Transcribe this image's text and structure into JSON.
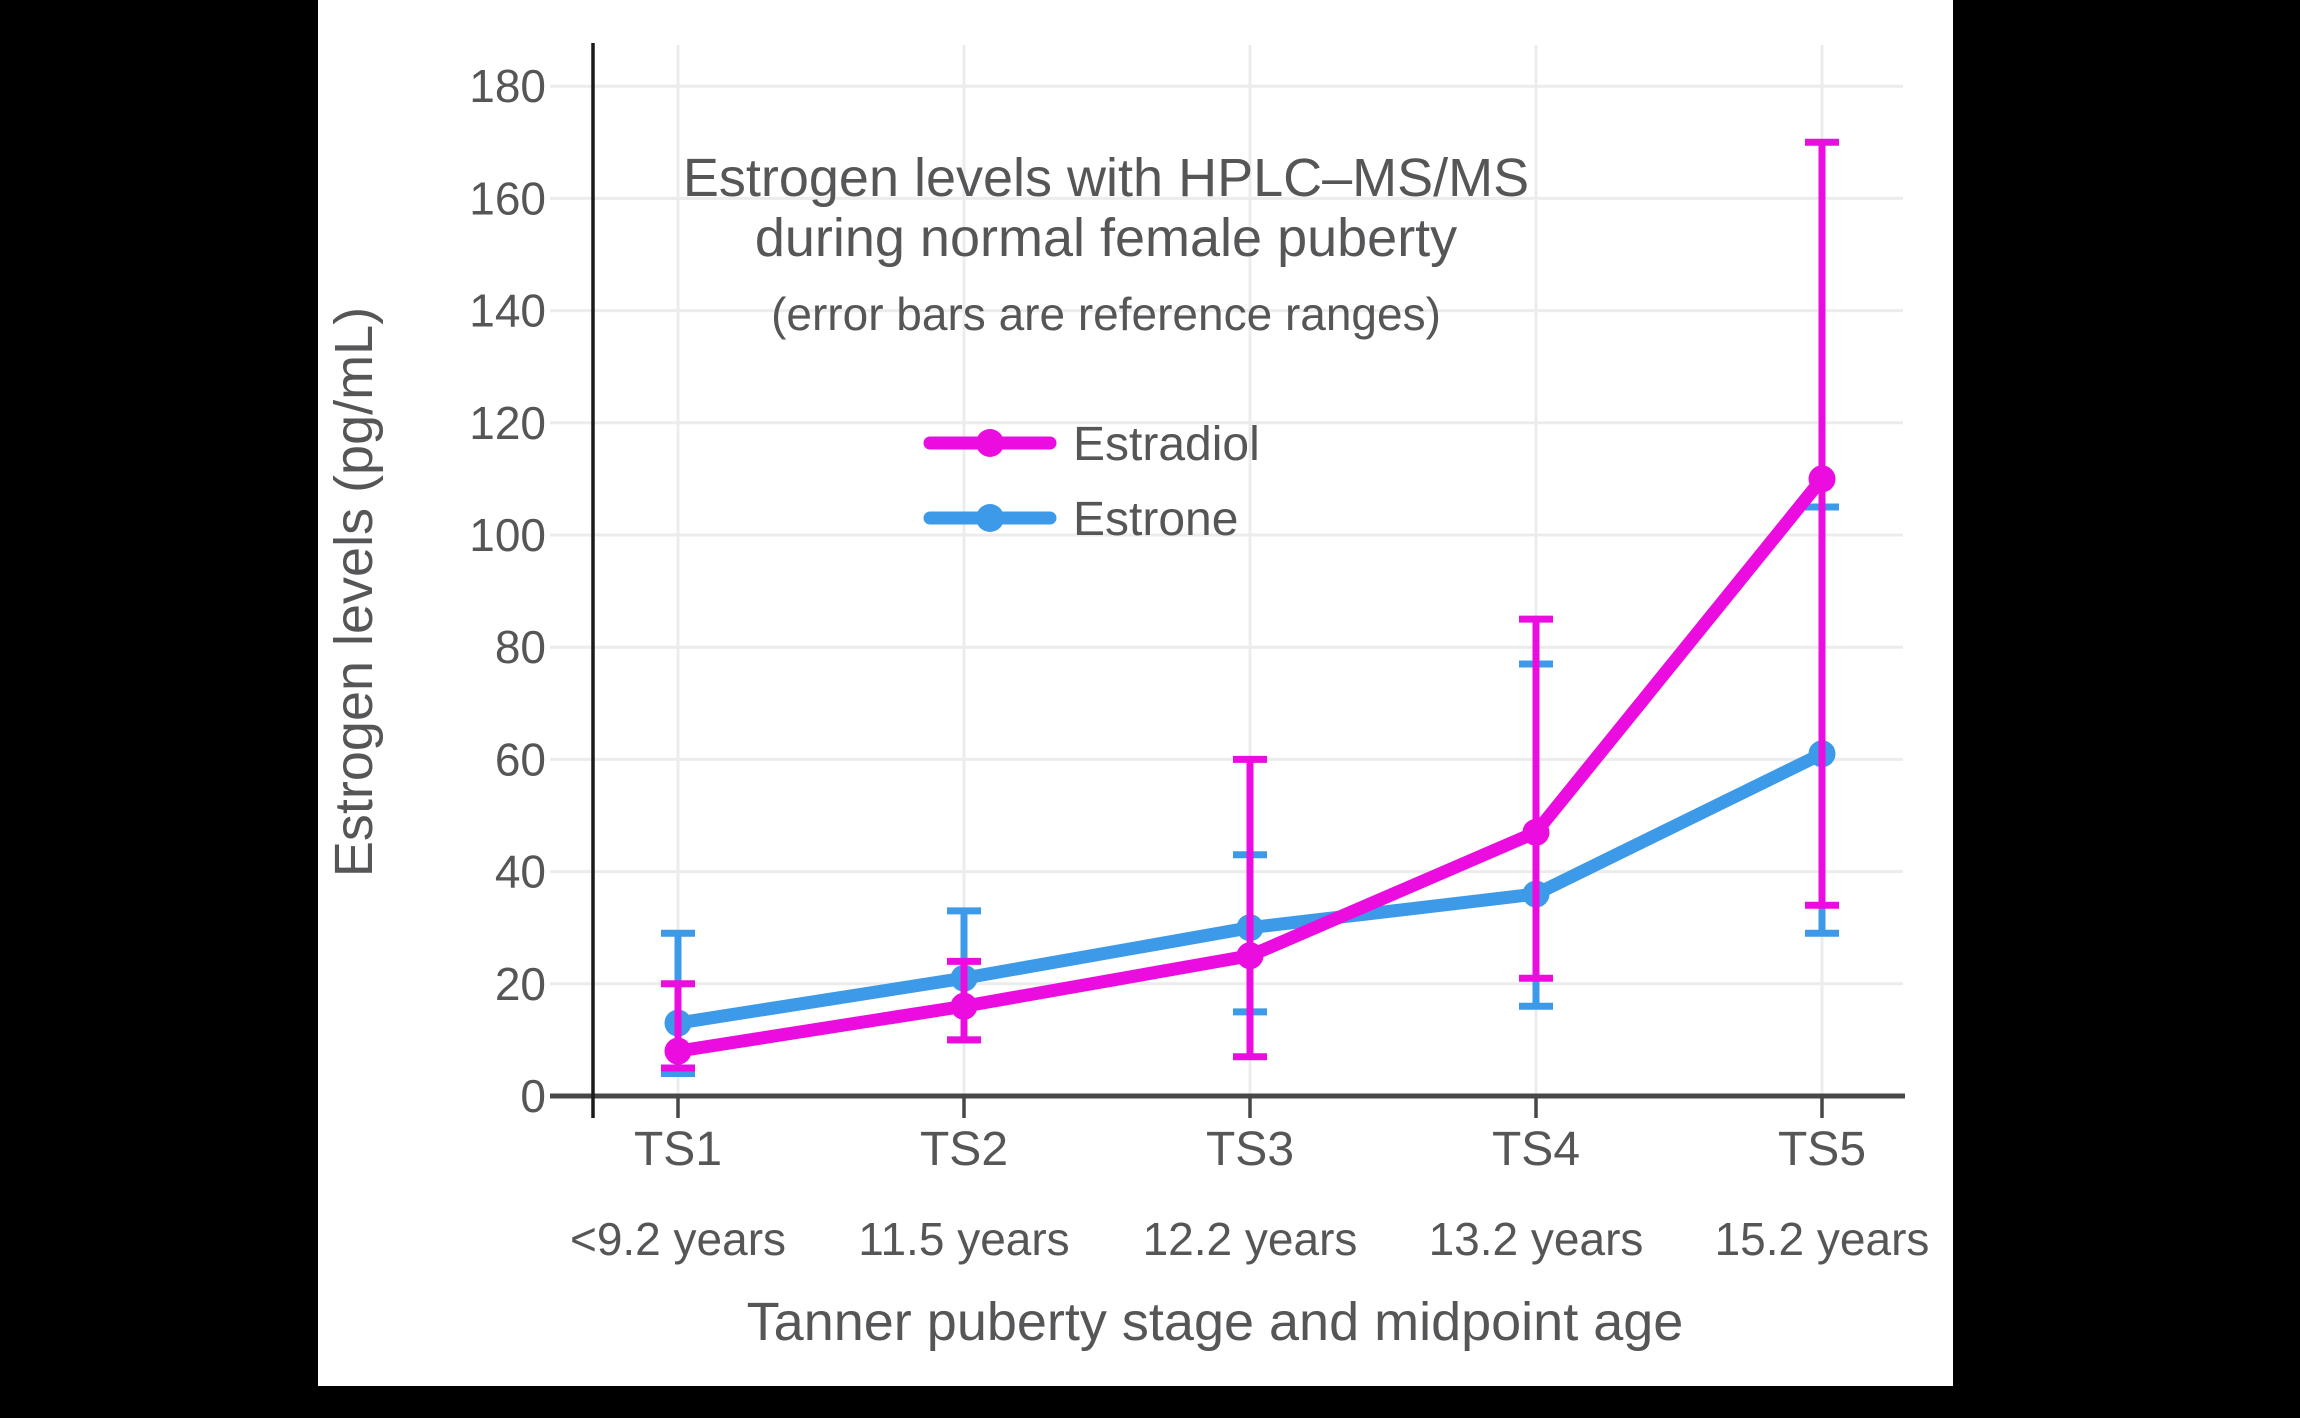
{
  "page": {
    "background": "#000000",
    "canvas_background": "#ffffff"
  },
  "chart_data": {
    "type": "line",
    "title_lines": [
      "Estrogen levels with HPLC–MS/MS",
      "during normal female puberty"
    ],
    "subtitle": "(error bars are reference ranges)",
    "xlabel": "Tanner puberty stage and midpoint age",
    "ylabel": "Estrogen levels (pg/mL)",
    "categories": [
      "TS1",
      "TS2",
      "TS3",
      "TS4",
      "TS5"
    ],
    "category_sublabels": [
      "<9.2 years",
      "11.5 years",
      "12.2 years",
      "13.2 years",
      "15.2 years"
    ],
    "y_ticks": [
      0,
      20,
      40,
      60,
      80,
      100,
      120,
      140,
      160,
      180
    ],
    "ylim": [
      0,
      187
    ],
    "grid": true,
    "legend_position": "upper-center",
    "legend": [
      "Estradiol",
      "Estrone"
    ],
    "series": [
      {
        "name": "Estradiol",
        "color": "#EB0CDF",
        "values": [
          8,
          16,
          25,
          47,
          110
        ],
        "err_low": [
          5,
          10,
          7,
          21,
          34
        ],
        "err_high": [
          20,
          24,
          60,
          85,
          170
        ]
      },
      {
        "name": "Estrone",
        "color": "#3D9AE8",
        "values": [
          13,
          21,
          30,
          36,
          61
        ],
        "err_low": [
          4,
          10,
          15,
          16,
          29
        ],
        "err_high": [
          29,
          33,
          43,
          77,
          105
        ]
      }
    ],
    "colors": {
      "grid": "#ECECEC",
      "x_axis": "#474747",
      "y_axis": "#1A1A1A",
      "text": "#565658"
    }
  }
}
